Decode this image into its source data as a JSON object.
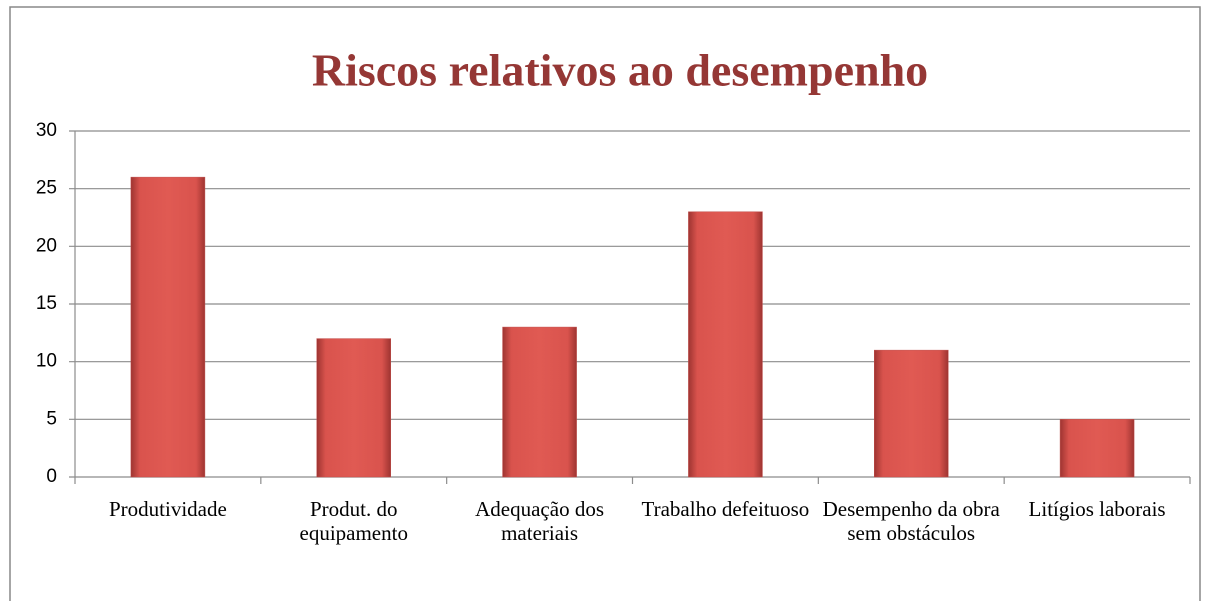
{
  "chart_data": {
    "type": "bar",
    "title": "Riscos relativos ao desempenho",
    "categories": [
      "Produtividade",
      "Produt. do equipamento",
      "Adequação dos materiais",
      "Trabalho defeituoso",
      "Desempenho da obra sem obstáculos",
      "Litígios laborais"
    ],
    "values": [
      26,
      12,
      13,
      23,
      11,
      5
    ],
    "color": "#c0504d",
    "ylim": [
      0,
      30
    ],
    "yticks": [
      0,
      5,
      10,
      15,
      20,
      25,
      30
    ],
    "grid": true
  }
}
